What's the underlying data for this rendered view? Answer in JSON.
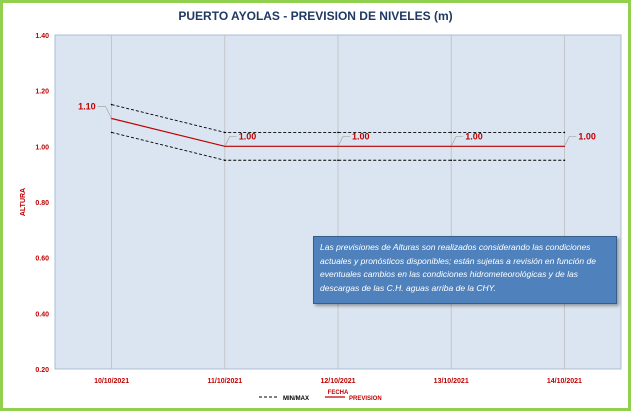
{
  "chart_data": {
    "type": "line",
    "title": "PUERTO AYOLAS - PREVISION DE NIVELES (m)",
    "xlabel": "FECHA",
    "ylabel": "ALTURA",
    "categories": [
      "10/10/2021",
      "11/10/2021",
      "12/10/2021",
      "13/10/2021",
      "14/10/2021"
    ],
    "ylim": [
      0.2,
      1.4
    ],
    "yticks": [
      "0.20",
      "0.40",
      "0.60",
      "0.80",
      "1.00",
      "1.20",
      "1.40"
    ],
    "grid": "vertical",
    "legend_position": "bottom",
    "series": [
      {
        "name": "MIN/MAX",
        "style": "dashed",
        "color": "#000000",
        "values": [
          1.15,
          1.05,
          1.05,
          1.05,
          1.05
        ]
      },
      {
        "name": "MIN/MAX",
        "style": "dashed",
        "color": "#000000",
        "values": [
          1.05,
          0.95,
          0.95,
          0.95,
          0.95
        ]
      },
      {
        "name": "PREVISION",
        "style": "solid",
        "color": "#c00000",
        "values": [
          1.1,
          1.0,
          1.0,
          1.0,
          1.0
        ]
      }
    ],
    "data_labels": [
      "1.10",
      "1.00",
      "1.00",
      "1.00",
      "1.00"
    ],
    "annotation": "Las previsiones de Alturas son realizados considerando las condiciones actuales y pronósticos disponibles;  están sujetas a revisión en función de eventuales cambios en las condiciones hidrometeorológicas y de las descargas de las C.H. aguas arriba de la CHY."
  },
  "colors": {
    "frame_border": "#92d050",
    "plot_background": "#dbe5f1",
    "title_text": "#1f3864",
    "axis_text": "#c00000",
    "note_background": "#4f81bd"
  }
}
